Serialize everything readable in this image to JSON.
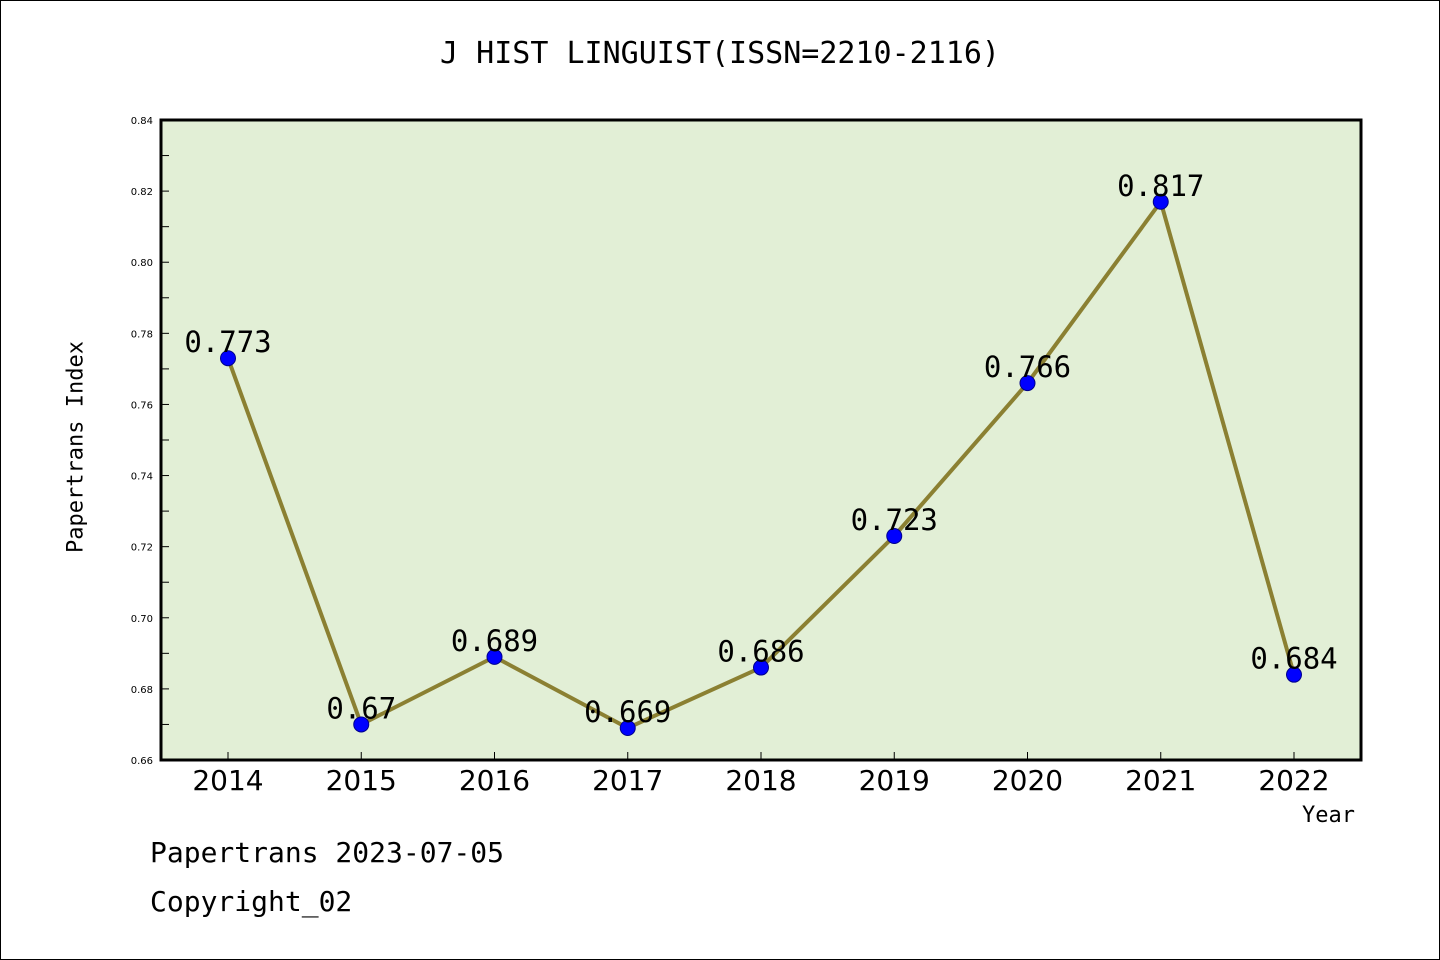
{
  "page": {
    "footer_date": "Papertrans 2023-07-05",
    "footer_copyright": "Copyright_02"
  },
  "chart_data": {
    "type": "line",
    "title": "J HIST LINGUIST(ISSN=2210-2116)",
    "xlabel": "Year",
    "ylabel": "Papertrans Index",
    "categories": [
      "2014",
      "2015",
      "2016",
      "2017",
      "2018",
      "2019",
      "2020",
      "2021",
      "2022"
    ],
    "series": [
      {
        "values": [
          0.773,
          0.67,
          0.689,
          0.669,
          0.686,
          0.723,
          0.766,
          0.817,
          0.684
        ],
        "data_labels": [
          "0.773",
          "0.67",
          "0.689",
          "0.669",
          "0.686",
          "0.723",
          "0.766",
          "0.817",
          "0.684"
        ]
      }
    ],
    "ylim": [
      0.66,
      0.84
    ],
    "yticks": [
      "0.66",
      "0.68",
      "0.70",
      "0.72",
      "0.74",
      "0.76",
      "0.78",
      "0.80",
      "0.82",
      "0.84"
    ],
    "grid": false,
    "colors": {
      "plot_background": "#e2efd6",
      "line": "#8b8032",
      "marker": "#0000ff"
    }
  }
}
